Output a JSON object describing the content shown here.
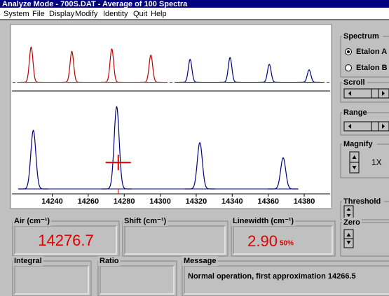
{
  "window": {
    "title": "Analyze Mode - 700S.DAT - Average of 100 Spectra"
  },
  "menu": [
    "System",
    "File",
    "Display",
    "Modify",
    "Identity",
    "Quit",
    "Help"
  ],
  "controls": {
    "spectrum": {
      "label": "Spectrum",
      "options": [
        "Etalon A",
        "Etalon B"
      ],
      "selected": 0
    },
    "scroll": "Scroll",
    "range": "Range",
    "magnify": {
      "label": "Magnify",
      "value": "1X"
    },
    "threshold": "Threshold",
    "zero": "Zero"
  },
  "fields": {
    "air": {
      "label": "Air (cm⁻¹)",
      "value": "14276.7"
    },
    "shift": {
      "label": "Shift (cm⁻¹)"
    },
    "linewidth": {
      "label": "Linewidth (cm⁻¹)",
      "value": "2.90",
      "percent": "50%"
    },
    "integral": {
      "label": "Integral"
    },
    "ratio": {
      "label": "Ratio"
    },
    "message": {
      "label": "Message",
      "text": "Normal operation, first approximation 14266.5"
    }
  },
  "chart_data": [
    {
      "type": "line",
      "xlim": [
        14218,
        14394
      ],
      "ylim": [
        0,
        100
      ],
      "baseline": 12,
      "baseline_color": "#c00000",
      "series": [
        {
          "color": "#c00000",
          "x": [
            14228.3,
            14250.9,
            14273.1,
            14294.8
          ],
          "values": [
            69,
            62,
            66,
            56
          ]
        },
        {
          "color": "#000080",
          "x": [
            14316.6,
            14338.8,
            14360.6,
            14382.7
          ],
          "values": [
            49,
            52,
            41,
            32
          ]
        }
      ]
    },
    {
      "type": "line",
      "xlim": [
        14218,
        14394
      ],
      "ylim": [
        0,
        100
      ],
      "xticks": [
        14240,
        14260,
        14280,
        14300,
        14320,
        14340,
        14360,
        14380
      ],
      "series": [
        {
          "color": "#000080",
          "x": [
            14229.5,
            14275.8,
            14322,
            14368.3
          ],
          "values": [
            62,
            87,
            49,
            33
          ]
        }
      ],
      "cursor": {
        "x": 14276.7,
        "y": 28,
        "color": "#e00000"
      }
    }
  ]
}
